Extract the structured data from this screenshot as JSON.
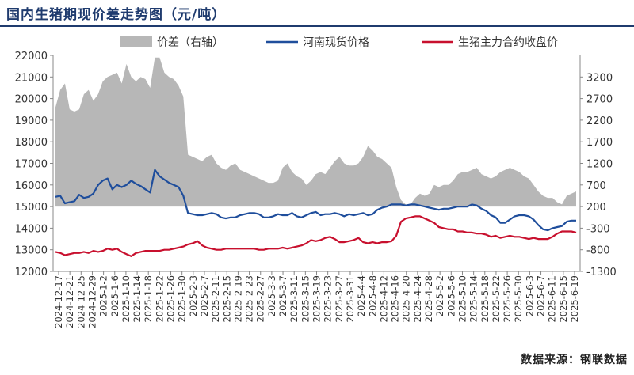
{
  "title": "国内生猪期现价差走势图（元/吨）",
  "source": "数据来源：钢联数据",
  "colors": {
    "spread": "#b7b7b7",
    "spot": "#1f4e9c",
    "futures": "#c8102e",
    "title": "#1f3b6e"
  },
  "chart_data": {
    "type": "line",
    "title": "国内生猪期现价差走势图（元/吨）",
    "legend": [
      {
        "name": "价差（右轴）",
        "kind": "area",
        "color": "#b7b7b7"
      },
      {
        "name": "河南现货价格",
        "kind": "line",
        "color": "#1f4e9c"
      },
      {
        "name": "生猪主力合约收盘价",
        "kind": "line",
        "color": "#c8102e"
      }
    ],
    "legend_position": "top",
    "left_axis": {
      "min": 12000,
      "max": 22000,
      "step": 1000,
      "ticks": [
        "12000",
        "13000",
        "14000",
        "15000",
        "16000",
        "17000",
        "18000",
        "19000",
        "20000",
        "21000",
        "22000"
      ]
    },
    "right_axis": {
      "min": -1300,
      "max": 3700,
      "step": 500,
      "ticks": [
        "-1300",
        "-800",
        "-300",
        "200",
        "700",
        "1200",
        "1700",
        "2200",
        "2700",
        "3200"
      ]
    },
    "x_tick_labels": [
      "2024-12-17",
      "2024-12-21",
      "2024-12-25",
      "2024-12-29",
      "2025-1-2",
      "2025-1-6",
      "2025-1-10",
      "2025-1-14",
      "2025-1-18",
      "2025-1-22",
      "2025-1-26",
      "2025-1-30",
      "2025-2-3",
      "2025-2-7",
      "2025-2-11",
      "2025-2-15",
      "2025-2-19",
      "2025-2-23",
      "2025-2-27",
      "2025-3-3",
      "2025-3-7",
      "2025-3-11",
      "2025-3-15",
      "2025-3-19",
      "2025-3-23",
      "2025-3-27",
      "2025-3-31",
      "2025-4-4",
      "2025-4-8",
      "2025-4-12",
      "2025-4-16",
      "2025-4-20",
      "2025-4-24",
      "2025-4-28",
      "2025-5-2",
      "2025-5-6",
      "2025-5-10",
      "2025-5-14",
      "2025-5-18",
      "2025-5-22",
      "2025-5-26",
      "2025-5-30",
      "2025-6-3",
      "2025-6-7",
      "2025-6-11",
      "2025-6-15",
      "2025-6-19"
    ],
    "series": [
      {
        "name": "河南现货价格",
        "axis": "left",
        "values": [
          15450,
          15500,
          15150,
          15200,
          15250,
          15550,
          15400,
          15450,
          15600,
          16000,
          16200,
          16300,
          15800,
          16000,
          15900,
          16000,
          16200,
          16050,
          15950,
          15800,
          15650,
          16700,
          16400,
          16250,
          16100,
          16000,
          15900,
          15500,
          14700,
          14650,
          14600,
          14600,
          14650,
          14700,
          14650,
          14500,
          14450,
          14500,
          14500,
          14600,
          14650,
          14700,
          14700,
          14650,
          14500,
          14500,
          14550,
          14650,
          14600,
          14600,
          14700,
          14550,
          14500,
          14600,
          14700,
          14750,
          14600,
          14650,
          14650,
          14700,
          14650,
          14550,
          14650,
          14600,
          14650,
          14700,
          14600,
          14650,
          14850,
          14950,
          15000,
          15100,
          15100,
          15100,
          15050,
          15100,
          15100,
          15050,
          15000,
          14950,
          14900,
          14850,
          14900,
          14900,
          14950,
          15000,
          15000,
          15000,
          15100,
          15050,
          14900,
          14800,
          14600,
          14500,
          14250,
          14250,
          14400,
          14550,
          14600,
          14600,
          14550,
          14400,
          14150,
          13950,
          13900,
          14000,
          14050,
          14100,
          14300,
          14350,
          14350
        ]
      },
      {
        "name": "生猪主力合约收盘价",
        "axis": "left",
        "values": [
          12900,
          12850,
          12750,
          12800,
          12850,
          12850,
          12900,
          12850,
          12950,
          12900,
          12950,
          13050,
          13000,
          13050,
          12900,
          12800,
          12700,
          12850,
          12900,
          12950,
          12950,
          12950,
          12950,
          13000,
          13000,
          13050,
          13100,
          13150,
          13250,
          13300,
          13400,
          13200,
          13100,
          13050,
          13000,
          13000,
          13050,
          13050,
          13050,
          13050,
          13050,
          13050,
          13050,
          13000,
          13000,
          13050,
          13050,
          13050,
          13100,
          13050,
          13100,
          13150,
          13200,
          13300,
          13450,
          13400,
          13450,
          13550,
          13600,
          13500,
          13350,
          13350,
          13400,
          13450,
          13550,
          13350,
          13300,
          13350,
          13300,
          13350,
          13350,
          13400,
          13650,
          14300,
          14450,
          14500,
          14550,
          14550,
          14450,
          14350,
          14250,
          14050,
          14000,
          13950,
          13950,
          13850,
          13850,
          13800,
          13800,
          13750,
          13750,
          13700,
          13600,
          13650,
          13550,
          13600,
          13650,
          13600,
          13600,
          13550,
          13500,
          13550,
          13500,
          13500,
          13500,
          13600,
          13750,
          13850,
          13850,
          13850,
          13800
        ]
      },
      {
        "name": "价差（右轴）",
        "axis": "right",
        "type": "area",
        "values": [
          2500,
          2900,
          3050,
          2450,
          2400,
          2450,
          2800,
          2900,
          2650,
          2800,
          3100,
          3200,
          3250,
          3300,
          3050,
          3500,
          3200,
          3100,
          3200,
          3150,
          2950,
          3650,
          3650,
          3300,
          3200,
          3150,
          3000,
          2750,
          1400,
          1350,
          1300,
          1250,
          1350,
          1400,
          1200,
          1100,
          1050,
          1150,
          1200,
          1050,
          1000,
          950,
          900,
          850,
          800,
          750,
          750,
          800,
          1100,
          1200,
          1000,
          900,
          850,
          700,
          800,
          950,
          1000,
          950,
          1100,
          1250,
          1350,
          1200,
          1150,
          1150,
          1200,
          1350,
          1600,
          1500,
          1350,
          1300,
          1200,
          1100,
          650,
          350,
          250,
          250,
          400,
          500,
          450,
          500,
          700,
          650,
          700,
          700,
          800,
          950,
          1000,
          1000,
          1050,
          1100,
          950,
          900,
          850,
          900,
          1000,
          1050,
          1100,
          1050,
          1000,
          900,
          850,
          700,
          550,
          450,
          400,
          400,
          300,
          250,
          450,
          500,
          550
        ]
      }
    ],
    "grid": false
  }
}
